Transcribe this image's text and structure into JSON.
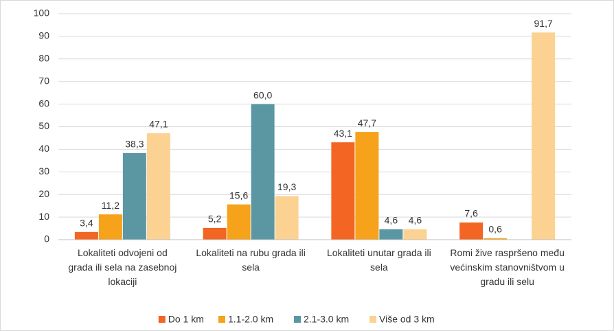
{
  "chart_data": {
    "type": "bar",
    "categories": [
      "Lokaliteti odvojeni od grada ili sela na zasebnoj lokaciji",
      "Lokaliteti na rubu grada ili sela",
      "Lokaliteti unutar grada ili sela",
      "Romi žive raspršeno među većinskim stanovništvom u gradu ili selu"
    ],
    "series": [
      {
        "name": "Do 1 km",
        "color": "#f26522",
        "values": [
          3.4,
          5.2,
          43.1,
          7.6
        ],
        "value_labels": [
          "3,4",
          "5,2",
          "43,1",
          "7,6"
        ]
      },
      {
        "name": "1.1-2.0 km",
        "color": "#f7a21b",
        "values": [
          11.2,
          15.6,
          47.7,
          0.6
        ],
        "value_labels": [
          "11,2",
          "15,6",
          "47,7",
          "0,6"
        ]
      },
      {
        "name": "2.1-3.0 km",
        "color": "#5b97a3",
        "values": [
          38.3,
          60.0,
          4.6,
          0
        ],
        "value_labels": [
          "38,3",
          "60,0",
          "4,6",
          null
        ]
      },
      {
        "name": "Više od 3 km",
        "color": "#fbd292",
        "values": [
          47.1,
          19.3,
          4.6,
          91.7
        ],
        "value_labels": [
          "47,1",
          "19,3",
          "4,6",
          "91,7"
        ]
      }
    ],
    "ylim": [
      0,
      100
    ],
    "yticks": [
      0,
      10,
      20,
      30,
      40,
      50,
      60,
      70,
      80,
      90,
      100
    ],
    "grid": true,
    "legend": "bottom"
  }
}
